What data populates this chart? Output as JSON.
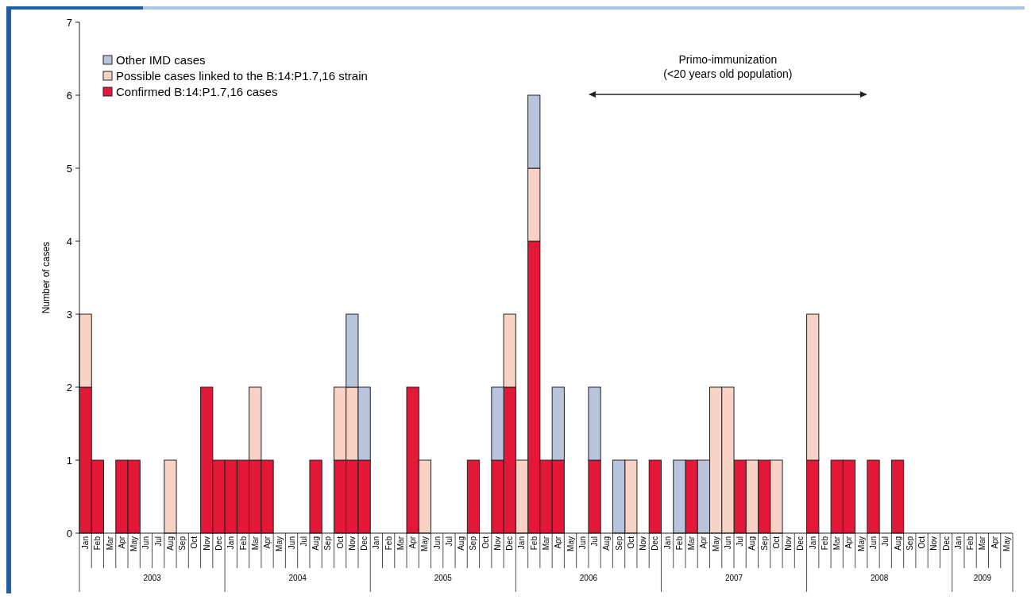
{
  "chart_data": {
    "type": "bar",
    "stacked": true,
    "ylabel": "Number of cases",
    "categories": [
      "Jan",
      "Feb",
      "Mar",
      "Apr",
      "May",
      "Jun",
      "Jul",
      "Aug",
      "Sep",
      "Oct",
      "Nov",
      "Dec",
      "Jan",
      "Feb",
      "Mar",
      "Apr",
      "May",
      "Jun",
      "Jul",
      "Aug",
      "Sep",
      "Oct",
      "Nov",
      "Dec",
      "Jan",
      "Feb",
      "Mar",
      "Apr",
      "May",
      "Jun",
      "Jul",
      "Aug",
      "Sep",
      "Oct",
      "Nov",
      "Dec",
      "Jan",
      "Feb",
      "Mar",
      "Apr",
      "May",
      "Jun",
      "Jul",
      "Aug",
      "Sep",
      "Oct",
      "Nov",
      "Dec",
      "Jan",
      "Feb",
      "Mar",
      "Apr",
      "May",
      "Jun",
      "Jul",
      "Aug",
      "Sep",
      "Oct",
      "Nov",
      "Dec",
      "Jan",
      "Feb",
      "Mar",
      "Apr",
      "May",
      "Jun",
      "Jul",
      "Aug",
      "Sep",
      "Oct",
      "Nov",
      "Dec",
      "Jan",
      "Feb",
      "Mar",
      "Apr",
      "May"
    ],
    "series": [
      {
        "name": "Confirmed B:14:P1.7,16 cases",
        "color": "#e31837",
        "values": [
          2,
          1,
          0,
          1,
          1,
          0,
          0,
          0,
          0,
          0,
          2,
          1,
          1,
          1,
          1,
          1,
          0,
          0,
          0,
          1,
          0,
          1,
          1,
          1,
          0,
          0,
          0,
          2,
          0,
          0,
          0,
          0,
          1,
          0,
          1,
          2,
          0,
          4,
          1,
          1,
          0,
          0,
          1,
          0,
          0,
          0,
          0,
          1,
          0,
          0,
          1,
          0,
          0,
          0,
          1,
          0,
          1,
          0,
          0,
          0,
          1,
          0,
          1,
          1,
          0,
          1,
          0,
          1,
          0,
          0,
          0,
          0,
          0,
          0,
          0,
          0,
          0
        ]
      },
      {
        "name": "Possible cases linked to the B:14:P1.7,16 strain",
        "color": "#f8d3c5",
        "values": [
          1,
          0,
          0,
          0,
          0,
          0,
          0,
          1,
          0,
          0,
          0,
          0,
          0,
          0,
          1,
          0,
          0,
          0,
          0,
          0,
          0,
          1,
          1,
          0,
          0,
          0,
          0,
          0,
          1,
          0,
          0,
          0,
          0,
          0,
          0,
          1,
          1,
          1,
          0,
          0,
          0,
          0,
          0,
          0,
          0,
          1,
          0,
          0,
          0,
          0,
          0,
          0,
          2,
          2,
          0,
          1,
          0,
          1,
          0,
          0,
          2,
          0,
          0,
          0,
          0,
          0,
          0,
          0,
          0,
          0,
          0,
          0,
          0,
          0,
          0,
          0,
          0
        ]
      },
      {
        "name": "Other IMD cases",
        "color": "#b8c4dc",
        "values": [
          0,
          0,
          0,
          0,
          0,
          0,
          0,
          0,
          0,
          0,
          0,
          0,
          0,
          0,
          0,
          0,
          0,
          0,
          0,
          0,
          0,
          0,
          1,
          1,
          0,
          0,
          0,
          0,
          0,
          0,
          0,
          0,
          0,
          0,
          1,
          0,
          0,
          1,
          0,
          1,
          0,
          0,
          1,
          0,
          1,
          0,
          0,
          0,
          0,
          1,
          0,
          1,
          0,
          0,
          0,
          0,
          0,
          0,
          0,
          0,
          0,
          0,
          0,
          0,
          0,
          0,
          0,
          0,
          0,
          0,
          0,
          0,
          0,
          0,
          0,
          0,
          0
        ]
      }
    ],
    "ylim": [
      0,
      7
    ],
    "yticks": [
      0,
      1,
      2,
      3,
      4,
      5,
      6,
      7
    ],
    "legend": "top left",
    "annotations": [
      "Primo-immunization",
      "(<20 years old population)",
      "2003",
      "2004",
      "2005",
      "2006",
      "2007",
      "2008",
      "2009"
    ]
  }
}
